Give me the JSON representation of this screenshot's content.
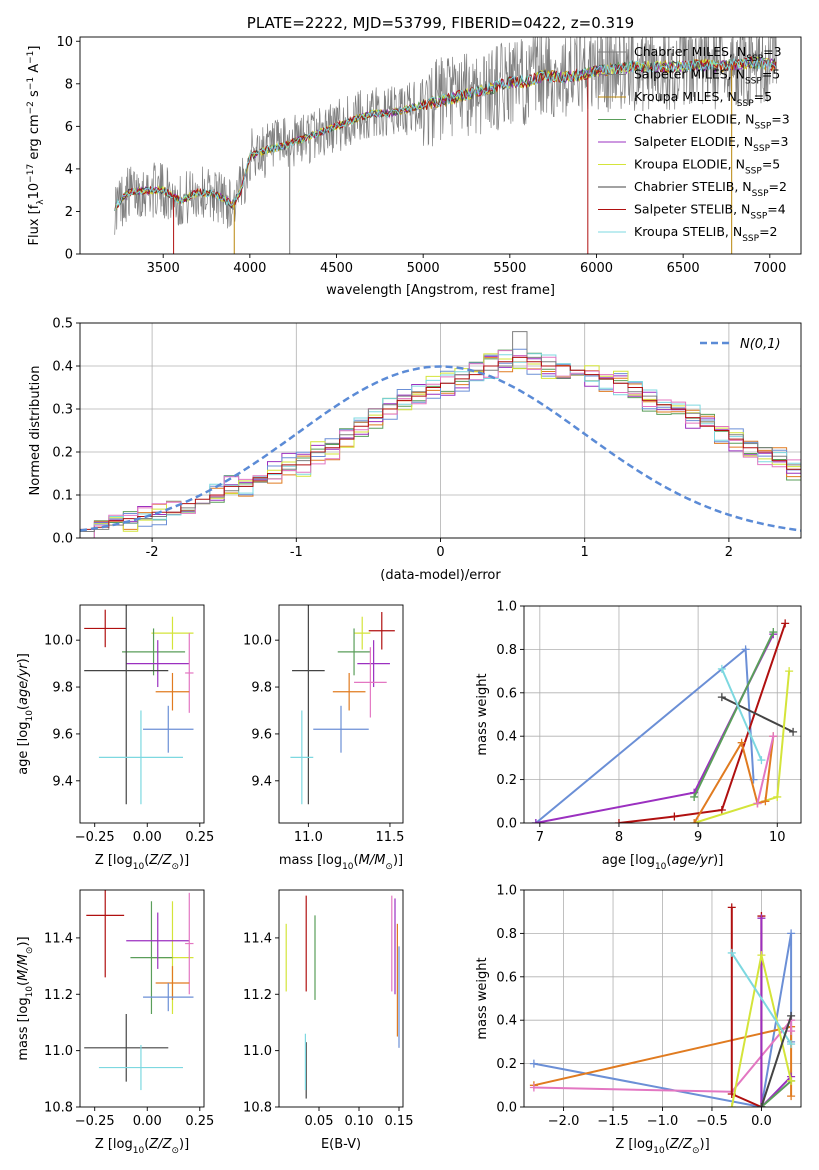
{
  "chart_data": [
    {
      "type": "line",
      "title": "PLATE=2222, MJD=53799, FIBERID=0422, z=0.319",
      "xlabel": "wavelength [Angstrom, rest frame]",
      "ylabel": "Flux [f_λ 10^-17 erg cm^-2 s^-1 A^-1]",
      "xlim": [
        3020,
        7180
      ],
      "ylim": [
        0,
        10.2
      ],
      "xticks": [
        3500,
        4000,
        4500,
        5000,
        5500,
        6000,
        6500,
        7000
      ],
      "yticks": [
        0,
        2,
        4,
        6,
        8,
        10
      ],
      "legend_position": "top-right",
      "series": [
        {
          "name": "Chabrier MILES, N_SSP=3",
          "color": "#7f7f7f"
        },
        {
          "name": "Salpeter MILES, N_SSP=5",
          "color": "#7f7f7f"
        },
        {
          "name": "Kroupa MILES, N_SSP=5",
          "color": "#b8860b"
        },
        {
          "name": "Chabrier ELODIE, N_SSP=3",
          "color": "#5a9e5a"
        },
        {
          "name": "Salpeter ELODIE, N_SSP=3",
          "color": "#9b30c0"
        },
        {
          "name": "Kroupa ELODIE, N_SSP=5",
          "color": "#d4e43a"
        },
        {
          "name": "Chabrier STELIB, N_SSP=2",
          "color": "#444444"
        },
        {
          "name": "Salpeter STELIB, N_SSP=4",
          "color": "#b01010"
        },
        {
          "name": "Kroupa STELIB, N_SSP=2",
          "color": "#7dd8e0"
        }
      ],
      "model_spectrum": {
        "x": [
          3220,
          3300,
          3400,
          3500,
          3560,
          3600,
          3700,
          3800,
          3850,
          3900,
          3950,
          4000,
          4100,
          4200,
          4300,
          4400,
          4500,
          4600,
          4700,
          4800,
          4900,
          5000,
          5100,
          5200,
          5300,
          5400,
          5500,
          5600,
          5700,
          5800,
          5900,
          6000,
          6100,
          6200,
          6300,
          6400,
          6500,
          6600,
          6700,
          6800,
          6900,
          7000
        ],
        "y": [
          2.2,
          2.9,
          3.0,
          3.0,
          2.7,
          2.5,
          2.9,
          2.8,
          2.6,
          2.3,
          3.0,
          4.6,
          4.9,
          5.1,
          5.4,
          5.7,
          6.0,
          6.3,
          6.6,
          6.6,
          6.8,
          7.0,
          7.2,
          7.4,
          7.6,
          7.8,
          8.1,
          8.1,
          8.4,
          8.3,
          8.4,
          8.6,
          8.7,
          8.8,
          8.8,
          8.8,
          8.8,
          8.9,
          8.8,
          8.9,
          9.0,
          8.9
        ]
      }
    },
    {
      "type": "bar",
      "xlabel": "(data-model)/error",
      "ylabel": "Normed distribution",
      "xlim": [
        -2.5,
        2.5
      ],
      "ylim": [
        0,
        0.5
      ],
      "xticks": [
        -2,
        -1,
        0,
        1,
        2
      ],
      "yticks": [
        0.0,
        0.1,
        0.2,
        0.3,
        0.4,
        0.5
      ],
      "legend": "N(0,1)",
      "legend_position": "top-right",
      "bin_width": 0.1,
      "histograms": [
        {
          "color": "#7f7f7f",
          "values": [
            0.015,
            0.02,
            0.03,
            0.035,
            0.045,
            0.05,
            0.06,
            0.07,
            0.08,
            0.095,
            0.11,
            0.12,
            0.13,
            0.15,
            0.16,
            0.18,
            0.2,
            0.22,
            0.24,
            0.27,
            0.3,
            0.31,
            0.33,
            0.34,
            0.35,
            0.36,
            0.38,
            0.39,
            0.39,
            0.4,
            0.48,
            0.42,
            0.41,
            0.4,
            0.39,
            0.38,
            0.37,
            0.36,
            0.34,
            0.33,
            0.31,
            0.3,
            0.29,
            0.27,
            0.25,
            0.24,
            0.22,
            0.21,
            0.19,
            0.17,
            0.16,
            0.14,
            0.13,
            0.12,
            0.11,
            0.09,
            0.08,
            0.07,
            0.06,
            0.05,
            0.04,
            0.035,
            0.03,
            0.025,
            0.02
          ]
        },
        {
          "color": "#b01010",
          "values": [
            0.02,
            0.025,
            0.04,
            0.045,
            0.05,
            0.06,
            0.06,
            0.08,
            0.09,
            0.1,
            0.12,
            0.12,
            0.14,
            0.15,
            0.17,
            0.17,
            0.2,
            0.21,
            0.23,
            0.26,
            0.28,
            0.3,
            0.32,
            0.33,
            0.35,
            0.36,
            0.37,
            0.38,
            0.4,
            0.41,
            0.42,
            0.41,
            0.4,
            0.4,
            0.39,
            0.38,
            0.37,
            0.36,
            0.35,
            0.32,
            0.31,
            0.3,
            0.28,
            0.26,
            0.25,
            0.23,
            0.21,
            0.2,
            0.18,
            0.16,
            0.15,
            0.13,
            0.12,
            0.11,
            0.1,
            0.08,
            0.07,
            0.06,
            0.05,
            0.05,
            0.04,
            0.035,
            0.03,
            0.025,
            0.02
          ]
        }
      ],
      "gaussian_mu": 0,
      "gaussian_sigma": 1
    },
    {
      "type": "scatter",
      "xlabel": "Z [log10(Z/Z⊙)]",
      "ylabel": "age [log10(age/yr)]",
      "xlim": [
        -0.32,
        0.27
      ],
      "ylim": [
        9.22,
        10.15
      ],
      "xticks": [
        -0.25,
        0.0,
        0.25
      ],
      "xtick_labels": [
        "−0.25",
        "0.00",
        "0.25"
      ],
      "yticks": [
        9.4,
        9.6,
        9.8,
        10.0
      ],
      "points": [
        {
          "x": -0.2,
          "y": 10.05,
          "xerr": 0.1,
          "yerr": 0.08,
          "color": "#b01010"
        },
        {
          "x": 0.12,
          "y": 10.03,
          "xerr": 0.1,
          "yerr": 0.07,
          "color": "#d4e43a"
        },
        {
          "x": 0.03,
          "y": 9.95,
          "xerr": 0.15,
          "yerr": 0.1,
          "color": "#5a9e5a"
        },
        {
          "x": 0.05,
          "y": 9.9,
          "xerr": 0.15,
          "yerr": 0.1,
          "color": "#9b30c0"
        },
        {
          "x": 0.2,
          "y": 9.86,
          "xerr": 0.02,
          "yerr": 0.17,
          "color": "#e377c2"
        },
        {
          "x": -0.1,
          "y": 9.87,
          "xerr": 0.2,
          "yerr": 0.57,
          "color": "#444444"
        },
        {
          "x": 0.12,
          "y": 9.78,
          "xerr": 0.08,
          "yerr": 0.08,
          "color": "#e07b20"
        },
        {
          "x": 0.1,
          "y": 9.62,
          "xerr": 0.12,
          "yerr": 0.1,
          "color": "#6b8fd6"
        },
        {
          "x": -0.03,
          "y": 9.5,
          "xerr": 0.2,
          "yerr": 0.2,
          "color": "#7dd8e0"
        }
      ]
    },
    {
      "type": "scatter",
      "xlabel": "mass [log10(M/M⊙)]",
      "xlim": [
        10.82,
        11.58
      ],
      "ylim": [
        9.22,
        10.15
      ],
      "xticks": [
        11.0,
        11.5
      ],
      "yticks": [
        9.4,
        9.6,
        9.8,
        10.0
      ],
      "points": [
        {
          "x": 11.45,
          "y": 10.04,
          "xerr": 0.08,
          "yerr": 0.08,
          "color": "#b01010"
        },
        {
          "x": 11.33,
          "y": 10.03,
          "xerr": 0.05,
          "yerr": 0.07,
          "color": "#d4e43a"
        },
        {
          "x": 11.28,
          "y": 9.95,
          "xerr": 0.1,
          "yerr": 0.1,
          "color": "#5a9e5a"
        },
        {
          "x": 11.4,
          "y": 9.9,
          "xerr": 0.1,
          "yerr": 0.1,
          "color": "#9b30c0"
        },
        {
          "x": 11.38,
          "y": 9.82,
          "xerr": 0.1,
          "yerr": 0.15,
          "color": "#e377c2"
        },
        {
          "x": 11.0,
          "y": 9.87,
          "xerr": 0.1,
          "yerr": 0.57,
          "color": "#444444"
        },
        {
          "x": 11.25,
          "y": 9.78,
          "xerr": 0.1,
          "yerr": 0.08,
          "color": "#e07b20"
        },
        {
          "x": 11.2,
          "y": 9.62,
          "xerr": 0.17,
          "yerr": 0.1,
          "color": "#6b8fd6"
        },
        {
          "x": 10.96,
          "y": 9.5,
          "xerr": 0.07,
          "yerr": 0.2,
          "color": "#7dd8e0"
        }
      ]
    },
    {
      "type": "line",
      "xlabel": "age [log10(age/yr)]",
      "ylabel": "mass weight",
      "xlim": [
        6.8,
        10.3
      ],
      "ylim": [
        0,
        1.0
      ],
      "xticks": [
        7,
        8,
        9,
        10
      ],
      "yticks": [
        0.0,
        0.2,
        0.4,
        0.6,
        0.8,
        1.0
      ],
      "series": [
        {
          "color": "#6b8fd6",
          "x": [
            6.95,
            9.6,
            9.7
          ],
          "y": [
            0.0,
            0.8,
            0.2
          ]
        },
        {
          "color": "#9b30c0",
          "x": [
            6.95,
            8.95,
            9.95
          ],
          "y": [
            0.0,
            0.14,
            0.87
          ]
        },
        {
          "color": "#5a9e5a",
          "x": [
            8.95,
            9.95
          ],
          "y": [
            0.12,
            0.88
          ]
        },
        {
          "color": "#b01010",
          "x": [
            8.0,
            8.7,
            9.3,
            10.1
          ],
          "y": [
            0.0,
            0.03,
            0.06,
            0.92
          ]
        },
        {
          "color": "#444444",
          "x": [
            9.3,
            10.2
          ],
          "y": [
            0.58,
            0.42
          ]
        },
        {
          "color": "#7dd8e0",
          "x": [
            9.3,
            9.8
          ],
          "y": [
            0.71,
            0.29
          ]
        },
        {
          "color": "#d4e43a",
          "x": [
            8.95,
            10.0,
            10.15
          ],
          "y": [
            0.0,
            0.12,
            0.7
          ]
        },
        {
          "color": "#e07b20",
          "x": [
            8.95,
            9.55,
            9.75,
            9.85,
            9.95
          ],
          "y": [
            0.0,
            0.37,
            0.09,
            0.1,
            0.4
          ]
        },
        {
          "color": "#e377c2",
          "x": [
            9.75,
            9.95
          ],
          "y": [
            0.09,
            0.4
          ]
        }
      ]
    },
    {
      "type": "scatter",
      "xlabel": "Z [log10(Z/Z⊙)]",
      "ylabel": "mass [log10(M/M⊙)]",
      "xlim": [
        -0.32,
        0.27
      ],
      "ylim": [
        10.8,
        11.57
      ],
      "xticks": [
        -0.25,
        0.0,
        0.25
      ],
      "xtick_labels": [
        "−0.25",
        "0.00",
        "0.25"
      ],
      "yticks": [
        10.8,
        11.0,
        11.2,
        11.4
      ],
      "points": [
        {
          "x": -0.2,
          "y": 11.48,
          "xerr": 0.09,
          "yerr": 0.22,
          "color": "#b01010"
        },
        {
          "x": 0.12,
          "y": 11.33,
          "xerr": 0.1,
          "yerr": 0.2,
          "color": "#d4e43a"
        },
        {
          "x": 0.02,
          "y": 11.33,
          "xerr": 0.1,
          "yerr": 0.2,
          "color": "#5a9e5a"
        },
        {
          "x": 0.05,
          "y": 11.39,
          "xerr": 0.15,
          "yerr": 0.1,
          "color": "#9b30c0"
        },
        {
          "x": 0.2,
          "y": 11.38,
          "xerr": 0.02,
          "yerr": 0.18,
          "color": "#e377c2"
        },
        {
          "x": -0.1,
          "y": 11.01,
          "xerr": 0.2,
          "yerr": 0.12,
          "color": "#444444"
        },
        {
          "x": 0.12,
          "y": 11.24,
          "xerr": 0.08,
          "yerr": 0.06,
          "color": "#e07b20"
        },
        {
          "x": 0.1,
          "y": 11.19,
          "xerr": 0.12,
          "yerr": 0.05,
          "color": "#6b8fd6"
        },
        {
          "x": -0.03,
          "y": 10.94,
          "xerr": 0.2,
          "yerr": 0.08,
          "color": "#7dd8e0"
        }
      ]
    },
    {
      "type": "scatter",
      "xlabel": "E(B-V)",
      "xlim": [
        0.0,
        0.155
      ],
      "ylim": [
        10.8,
        11.57
      ],
      "xticks": [
        0.05,
        0.1,
        0.15
      ],
      "yticks": [
        10.8,
        11.0,
        11.2,
        11.4
      ],
      "points": [
        {
          "x": 0.034,
          "y": 11.38,
          "yerr": 0.17,
          "color": "#b01010"
        },
        {
          "x": 0.009,
          "y": 11.33,
          "yerr": 0.12,
          "color": "#d4e43a"
        },
        {
          "x": 0.045,
          "y": 11.33,
          "yerr": 0.15,
          "color": "#5a9e5a"
        },
        {
          "x": 0.145,
          "y": 11.37,
          "yerr": 0.17,
          "color": "#9b30c0"
        },
        {
          "x": 0.141,
          "y": 11.38,
          "yerr": 0.17,
          "color": "#e377c2"
        },
        {
          "x": 0.034,
          "y": 10.93,
          "yerr": 0.1,
          "color": "#444444"
        },
        {
          "x": 0.148,
          "y": 11.25,
          "yerr": 0.2,
          "color": "#e07b20"
        },
        {
          "x": 0.15,
          "y": 11.19,
          "yerr": 0.18,
          "color": "#6b8fd6"
        },
        {
          "x": 0.033,
          "y": 10.96,
          "yerr": 0.1,
          "color": "#7dd8e0"
        }
      ]
    },
    {
      "type": "line",
      "xlabel": "Z [log10(Z/Z⊙)]",
      "ylabel": "mass weight",
      "xlim": [
        -2.4,
        0.4
      ],
      "ylim": [
        0,
        1.0
      ],
      "xticks": [
        -2.0,
        -1.5,
        -1.0,
        -0.5,
        0.0
      ],
      "xtick_labels": [
        "−2.0",
        "−1.5",
        "−1.0",
        "−0.5",
        "0.0"
      ],
      "yticks": [
        0.0,
        0.2,
        0.4,
        0.6,
        0.8,
        1.0
      ],
      "series": [
        {
          "color": "#6b8fd6",
          "x": [
            -2.3,
            0.0,
            0.3,
            0.3
          ],
          "y": [
            0.2,
            0.0,
            0.8,
            0.3
          ]
        },
        {
          "color": "#e07b20",
          "x": [
            -2.3,
            0.3,
            0.3
          ],
          "y": [
            0.1,
            0.37,
            0.05
          ]
        },
        {
          "color": "#e377c2",
          "x": [
            -2.3,
            -0.3,
            0.3,
            0.3
          ],
          "y": [
            0.09,
            0.07,
            0.4,
            0.35
          ]
        },
        {
          "color": "#b01010",
          "x": [
            -0.3,
            -0.3,
            0.0,
            0.0
          ],
          "y": [
            0.92,
            0.06,
            0.0,
            0.88
          ]
        },
        {
          "color": "#9b30c0",
          "x": [
            0.0,
            0.0,
            0.3
          ],
          "y": [
            0.87,
            0.0,
            0.14
          ]
        },
        {
          "color": "#5a9e5a",
          "x": [
            0.0,
            0.3
          ],
          "y": [
            0.0,
            0.12
          ]
        },
        {
          "color": "#d4e43a",
          "x": [
            -0.3,
            0.0,
            0.3
          ],
          "y": [
            0.0,
            0.7,
            0.12
          ]
        },
        {
          "color": "#7dd8e0",
          "x": [
            -0.3,
            0.3
          ],
          "y": [
            0.71,
            0.29
          ]
        },
        {
          "color": "#444444",
          "x": [
            0.0,
            0.3
          ],
          "y": [
            0.0,
            0.42
          ]
        }
      ]
    }
  ]
}
